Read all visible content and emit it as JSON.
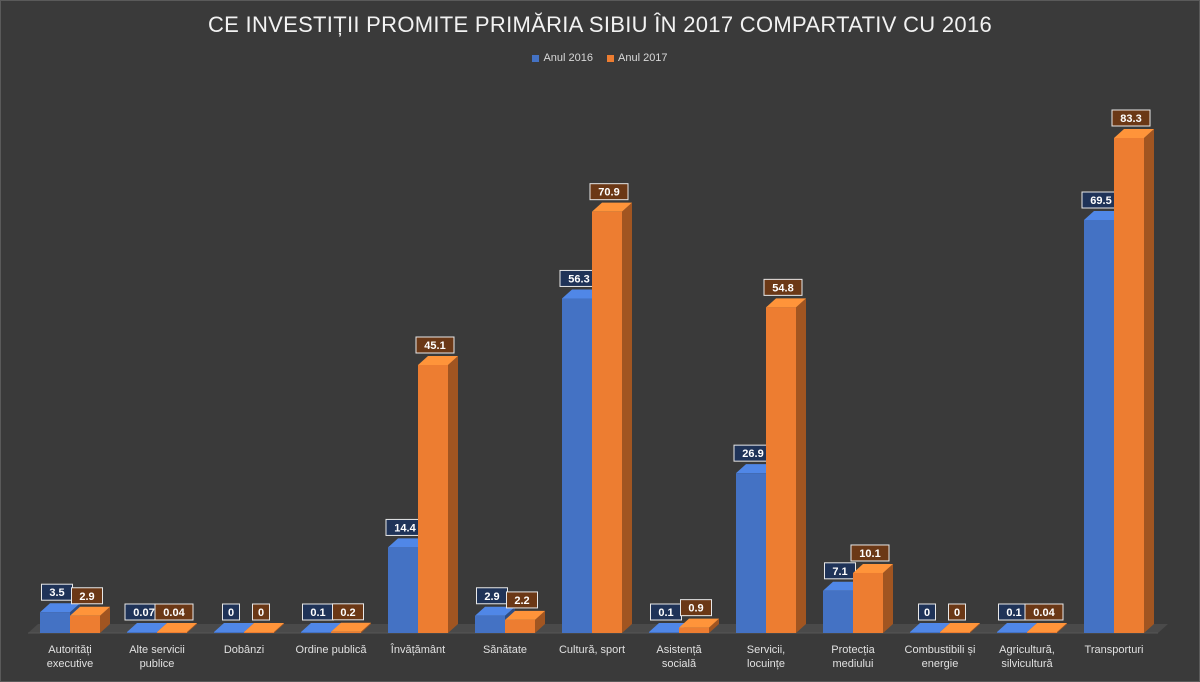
{
  "chart_data": {
    "type": "bar",
    "title": "CE INVESTIȚII PROMITE PRIMĂRIA SIBIU ÎN 2017 COMPARTATIV CU 2016",
    "legend_position": "top",
    "grid": false,
    "three_d": true,
    "ylim": [
      0,
      90
    ],
    "categories": [
      [
        "Autorități",
        "executive"
      ],
      [
        "Alte servicii",
        "publice"
      ],
      [
        "Dobânzi"
      ],
      [
        "Ordine publică"
      ],
      [
        "Învățământ"
      ],
      [
        "Sănătate"
      ],
      [
        "Cultură, sport"
      ],
      [
        "Asistență",
        "socială"
      ],
      [
        "Servicii,",
        "locuințe"
      ],
      [
        "Protecția",
        "mediului"
      ],
      [
        "Combustibili și",
        "energie"
      ],
      [
        "Agricultură,",
        "silvicultură"
      ],
      [
        "Transporturi"
      ]
    ],
    "series": [
      {
        "name": "Anul 2016",
        "color": "#4472c4",
        "values": [
          3.5,
          0.07,
          0,
          0.1,
          14.4,
          2.9,
          56.3,
          0.1,
          26.9,
          7.1,
          0,
          0.1,
          69.5
        ],
        "labels": [
          "3.5",
          "0.07",
          "0",
          "0.1",
          "14.4",
          "2.9",
          "56.3",
          "0.1",
          "26.9",
          "7.1",
          "0",
          "0.1",
          "69.5"
        ]
      },
      {
        "name": "Anul 2017",
        "color": "#ed7d31",
        "values": [
          2.9,
          0.04,
          0,
          0.2,
          45.1,
          2.2,
          70.9,
          0.9,
          54.8,
          10.1,
          0,
          0.04,
          83.3
        ],
        "labels": [
          "2.9",
          "0.04",
          "0",
          "0.2",
          "45.1",
          "2.2",
          "70.9",
          "0.9",
          "54.8",
          "10.1",
          "0",
          "0.04",
          "83.3"
        ]
      }
    ]
  }
}
